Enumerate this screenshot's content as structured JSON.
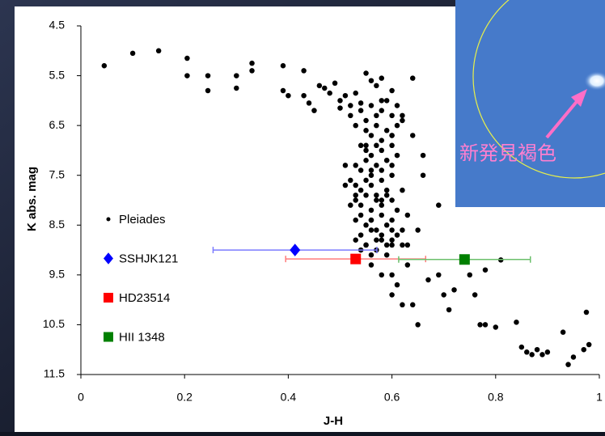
{
  "chart_data": {
    "type": "scatter",
    "x_label": "J-H",
    "y_label": "K abs. mag",
    "xlim": [
      0,
      1
    ],
    "ylim": [
      4.5,
      11.5
    ],
    "y_inverted": true,
    "xticks": [
      0,
      0.2,
      0.4,
      0.6,
      0.8,
      1
    ],
    "yticks": [
      4.5,
      5.5,
      6.5,
      7.5,
      8.5,
      9.5,
      10.5,
      11.5
    ],
    "legend": "left",
    "inset_caption": "新発見褐色",
    "series": [
      {
        "name": "Pleiades",
        "color": "#000000",
        "marker": "dot",
        "x": [
          0.045,
          0.1,
          0.15,
          0.205,
          0.205,
          0.245,
          0.245,
          0.3,
          0.3,
          0.33,
          0.33,
          0.39,
          0.39,
          0.4,
          0.43,
          0.43,
          0.44,
          0.45,
          0.46,
          0.47,
          0.48,
          0.49,
          0.5,
          0.5,
          0.51,
          0.52,
          0.53,
          0.54,
          0.55,
          0.56,
          0.57,
          0.58,
          0.6,
          0.64,
          0.52,
          0.53,
          0.54,
          0.55,
          0.56,
          0.57,
          0.58,
          0.59,
          0.6,
          0.61,
          0.62,
          0.55,
          0.56,
          0.57,
          0.58,
          0.59,
          0.6,
          0.61,
          0.54,
          0.55,
          0.56,
          0.57,
          0.58,
          0.59,
          0.6,
          0.53,
          0.54,
          0.55,
          0.56,
          0.57,
          0.58,
          0.59,
          0.6,
          0.61,
          0.52,
          0.53,
          0.54,
          0.55,
          0.56,
          0.57,
          0.58,
          0.59,
          0.6,
          0.53,
          0.54,
          0.55,
          0.56,
          0.57,
          0.58,
          0.59,
          0.6,
          0.61,
          0.62,
          0.53,
          0.54,
          0.55,
          0.56,
          0.57,
          0.58,
          0.59,
          0.6,
          0.53,
          0.54,
          0.55,
          0.56,
          0.57,
          0.58,
          0.59,
          0.6,
          0.54,
          0.55,
          0.56,
          0.57,
          0.58,
          0.59,
          0.6,
          0.61,
          0.62,
          0.53,
          0.55,
          0.56,
          0.58,
          0.6,
          0.51,
          0.51,
          0.52,
          0.56,
          0.58,
          0.6,
          0.63,
          0.56,
          0.58,
          0.6,
          0.61,
          0.6,
          0.62,
          0.64,
          0.63,
          0.67,
          0.69,
          0.7,
          0.65,
          0.71,
          0.72,
          0.75,
          0.76,
          0.78,
          0.81,
          0.77,
          0.78,
          0.8,
          0.84,
          0.85,
          0.86,
          0.87,
          0.88,
          0.89,
          0.9,
          0.94,
          0.95,
          0.97,
          0.98,
          0.975,
          0.93,
          0.66,
          0.69,
          0.62,
          0.64,
          0.66,
          0.63,
          0.65,
          0.62
        ],
        "y": [
          5.3,
          5.05,
          5.0,
          5.15,
          5.5,
          5.5,
          5.8,
          5.5,
          5.75,
          5.25,
          5.4,
          5.3,
          5.8,
          5.9,
          5.4,
          5.9,
          6.05,
          6.2,
          5.7,
          5.75,
          5.85,
          5.65,
          6.0,
          6.15,
          5.9,
          6.1,
          5.85,
          6.05,
          5.45,
          5.6,
          5.7,
          5.55,
          5.8,
          5.55,
          6.3,
          6.5,
          6.2,
          6.4,
          6.1,
          6.3,
          6.2,
          6.0,
          6.3,
          6.1,
          6.4,
          6.6,
          6.7,
          6.5,
          6.8,
          6.6,
          6.7,
          6.5,
          6.9,
          7.0,
          7.1,
          6.9,
          7.0,
          7.2,
          6.9,
          7.3,
          7.4,
          7.2,
          7.5,
          7.3,
          7.4,
          7.2,
          7.3,
          7.1,
          7.6,
          7.7,
          7.8,
          7.6,
          7.7,
          7.9,
          7.6,
          7.8,
          7.5,
          8.0,
          8.1,
          7.9,
          8.2,
          8.0,
          8.1,
          7.9,
          8.0,
          8.2,
          7.8,
          8.4,
          8.3,
          8.5,
          8.4,
          8.6,
          8.3,
          8.5,
          8.4,
          8.8,
          8.7,
          8.9,
          8.6,
          8.8,
          8.7,
          8.9,
          8.6,
          9.0,
          8.9,
          9.1,
          9.0,
          8.8,
          9.1,
          8.9,
          8.7,
          8.6,
          7.9,
          6.9,
          7.4,
          6.0,
          6.7,
          7.3,
          7.7,
          8.1,
          8.4,
          8.0,
          8.8,
          8.9,
          9.3,
          9.5,
          9.5,
          9.7,
          9.9,
          10.1,
          10.1,
          9.3,
          9.6,
          9.5,
          9.9,
          10.5,
          10.2,
          9.8,
          9.5,
          9.9,
          9.4,
          9.2,
          10.5,
          10.5,
          10.55,
          10.45,
          10.95,
          11.05,
          11.1,
          11.0,
          11.1,
          11.05,
          11.3,
          11.15,
          11.0,
          10.9,
          10.25,
          10.65,
          7.5,
          8.1,
          6.3,
          6.7,
          7.1,
          8.3,
          8.6,
          8.9
        ]
      },
      {
        "name": "SSHJK121",
        "color": "#0000ff",
        "marker": "diamond",
        "err_color": "#7b7bff",
        "x": [
          0.413
        ],
        "y": [
          9.0
        ],
        "xerr": [
          0.158
        ]
      },
      {
        "name": "HD23514",
        "color": "#ff0000",
        "marker": "square",
        "err_color": "#ff7b7b",
        "x": [
          0.53
        ],
        "y": [
          9.18
        ],
        "xerr": [
          0.135
        ]
      },
      {
        "name": "HII 1348",
        "color": "#008000",
        "marker": "square",
        "err_color": "#6bbf6b",
        "x": [
          0.74
        ],
        "y": [
          9.19
        ],
        "xerr": [
          0.127
        ]
      }
    ]
  }
}
